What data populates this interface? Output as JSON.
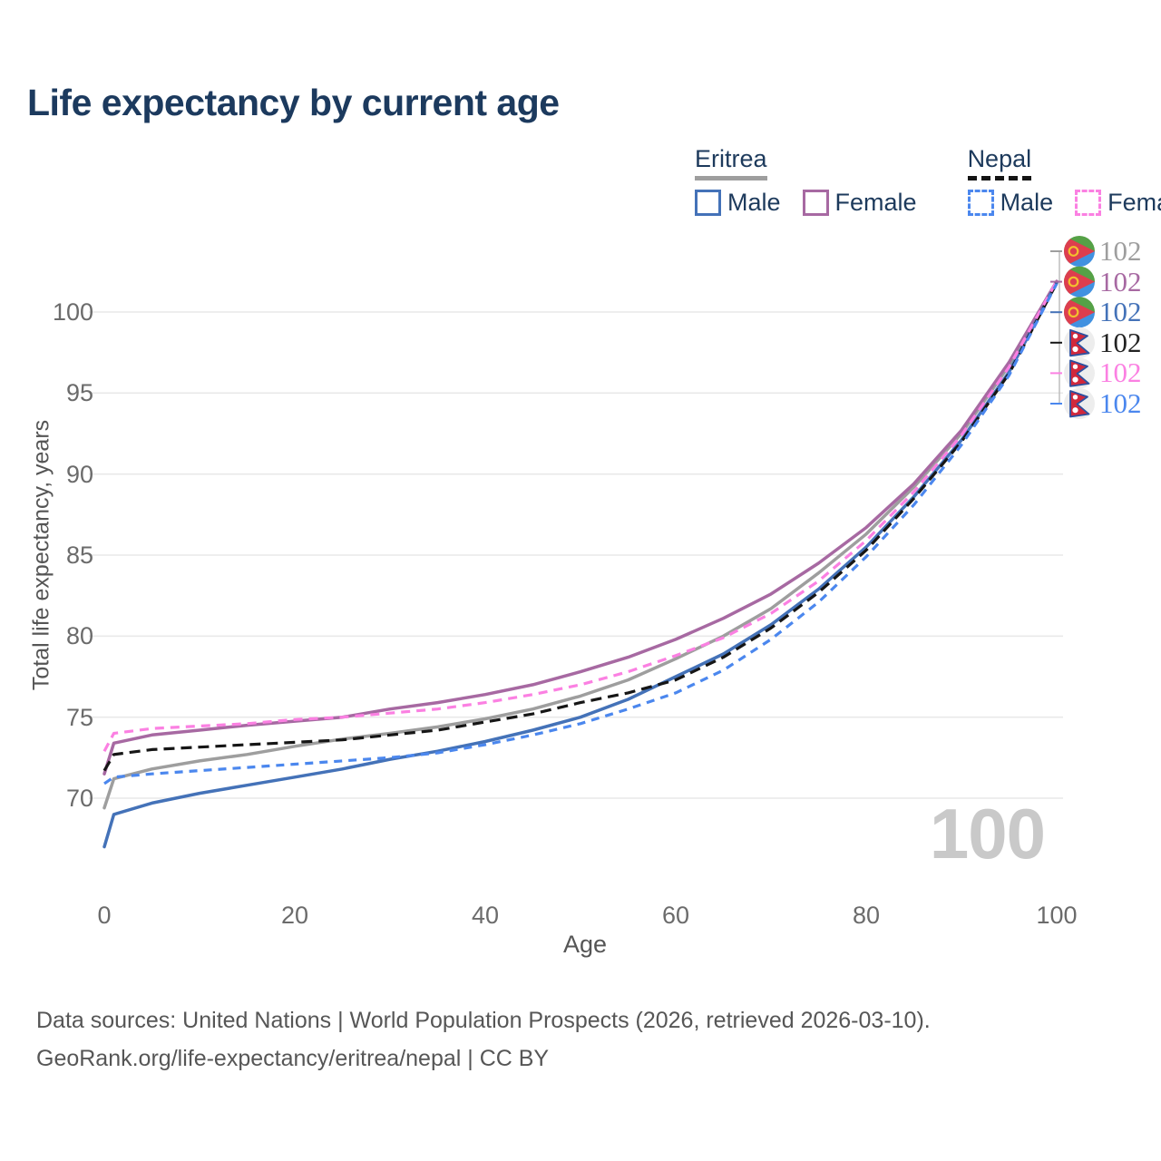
{
  "header": {
    "title": "Life expectancy by current age"
  },
  "legend": {
    "groups": [
      {
        "label": "Eritrea",
        "line_style": "solid",
        "underline_color": "#9e9e9e",
        "items": [
          {
            "label": "Male",
            "color": "#4472b8",
            "dashed": false
          },
          {
            "label": "Female",
            "color": "#a769a2",
            "dashed": false
          }
        ]
      },
      {
        "label": "Nepal",
        "line_style": "dashed",
        "underline_color": "#141414",
        "items": [
          {
            "label": "Male",
            "color": "#4b87ee",
            "dashed": true
          },
          {
            "label": "Female",
            "color": "#fb80e2",
            "dashed": true
          }
        ]
      }
    ]
  },
  "chart_data": {
    "type": "line",
    "title": "Life expectancy by current age",
    "xlabel": "Age",
    "ylabel": "Total life expectancy, years",
    "xlim": [
      0,
      100
    ],
    "ylim": [
      66.5,
      103
    ],
    "xticks": [
      0,
      20,
      40,
      60,
      80,
      100
    ],
    "yticks": [
      70,
      75,
      80,
      85,
      90,
      95,
      100
    ],
    "grid": "horizontal",
    "gridline_color": "#e9e9e9",
    "watermark": "100",
    "x": [
      0,
      1,
      5,
      10,
      15,
      20,
      25,
      30,
      35,
      40,
      45,
      50,
      55,
      60,
      65,
      70,
      75,
      80,
      85,
      90,
      95,
      100
    ],
    "series": [
      {
        "name": "Eritrea (both sexes)",
        "country": "Eritrea",
        "sex": "both",
        "color": "#9e9e9e",
        "dash": "solid",
        "dash_pattern": null,
        "values": [
          69.4,
          71.2,
          71.8,
          72.3,
          72.7,
          73.2,
          73.65,
          74.0,
          74.4,
          74.9,
          75.5,
          76.3,
          77.3,
          78.6,
          80.0,
          81.7,
          83.9,
          86.3,
          89.2,
          92.5,
          96.7,
          101.85
        ],
        "end_label": {
          "value": "102",
          "flag": "eritrea-flag",
          "text_color": "#9e9e9e"
        }
      },
      {
        "name": "Eritrea Female",
        "country": "Eritrea",
        "sex": "female",
        "color": "#a769a2",
        "dash": "solid",
        "dash_pattern": null,
        "values": [
          71.5,
          73.4,
          73.9,
          74.2,
          74.5,
          74.75,
          75.0,
          75.5,
          75.9,
          76.4,
          77.0,
          77.8,
          78.7,
          79.8,
          81.1,
          82.6,
          84.5,
          86.7,
          89.4,
          92.7,
          96.9,
          101.9
        ],
        "end_label": {
          "value": "102",
          "flag": "eritrea-flag",
          "text_color": "#a769a2"
        }
      },
      {
        "name": "Eritrea Male",
        "country": "Eritrea",
        "sex": "male",
        "color": "#4472b8",
        "dash": "solid",
        "dash_pattern": null,
        "values": [
          67.0,
          69.0,
          69.7,
          70.3,
          70.8,
          71.3,
          71.8,
          72.4,
          72.9,
          73.5,
          74.2,
          75.0,
          76.1,
          77.5,
          78.9,
          80.7,
          82.9,
          85.5,
          88.6,
          92.1,
          96.3,
          101.8
        ],
        "end_label": {
          "value": "102",
          "flag": "eritrea-flag",
          "text_color": "#4472b8"
        }
      },
      {
        "name": "Nepal (both sexes)",
        "country": "Nepal",
        "sex": "both",
        "color": "#161616",
        "dash": "dashed",
        "dash_pattern": "12 7",
        "values": [
          71.7,
          72.7,
          73.0,
          73.15,
          73.3,
          73.45,
          73.6,
          73.9,
          74.2,
          74.7,
          75.2,
          75.9,
          76.5,
          77.3,
          78.7,
          80.5,
          82.7,
          85.3,
          88.5,
          92.0,
          96.2,
          101.8
        ],
        "end_label": {
          "value": "102",
          "flag": "nepal-flag",
          "text_color": "#222222"
        }
      },
      {
        "name": "Nepal Female",
        "country": "Nepal",
        "sex": "female",
        "color": "#fb80e2",
        "dash": "dashed",
        "dash_pattern": "10 7",
        "values": [
          72.9,
          74.0,
          74.3,
          74.45,
          74.6,
          74.85,
          75.0,
          75.25,
          75.5,
          75.9,
          76.4,
          77.0,
          77.8,
          78.8,
          79.9,
          81.4,
          83.4,
          85.9,
          88.9,
          92.4,
          96.6,
          101.9
        ],
        "end_label": {
          "value": "102",
          "flag": "nepal-flag",
          "text_color": "#fb80e2"
        }
      },
      {
        "name": "Nepal Male",
        "country": "Nepal",
        "sex": "male",
        "color": "#4b87ee",
        "dash": "dashed",
        "dash_pattern": "9 7",
        "values": [
          70.9,
          71.3,
          71.5,
          71.7,
          71.9,
          72.1,
          72.3,
          72.5,
          72.8,
          73.3,
          73.9,
          74.6,
          75.5,
          76.5,
          77.9,
          79.8,
          82.1,
          84.9,
          88.1,
          91.8,
          96.1,
          101.75
        ],
        "end_label": {
          "value": "102",
          "flag": "nepal-flag",
          "text_color": "#4b87ee"
        }
      }
    ],
    "legend_position": "top-right"
  },
  "footer": {
    "line1": "Data sources: United Nations | World Population Prospects (2026, retrieved 2026-03-10).",
    "line2": "GeoRank.org/life-expectancy/eritrea/nepal | CC BY"
  }
}
